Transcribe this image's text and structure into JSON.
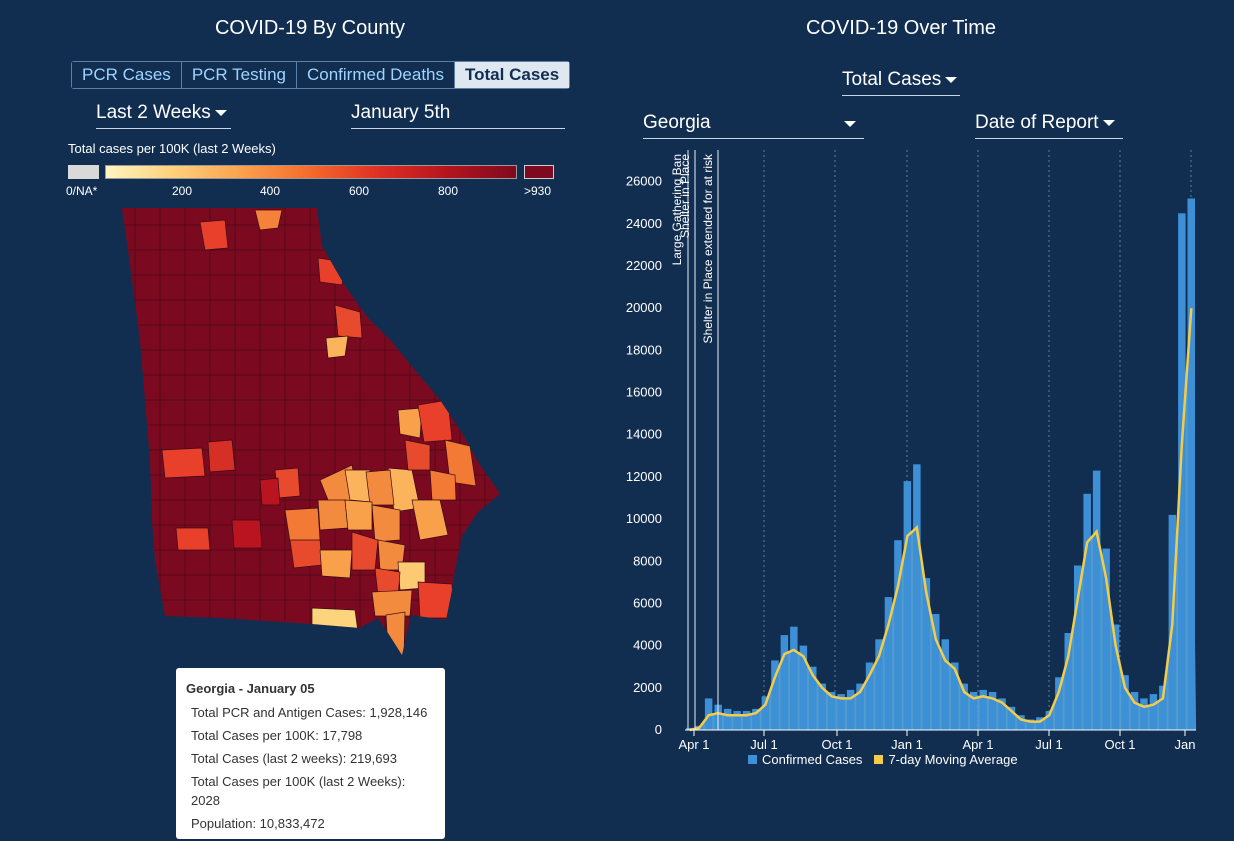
{
  "left": {
    "title": "COVID-19 By County",
    "tabs": [
      {
        "label": "PCR Cases",
        "active": false
      },
      {
        "label": "PCR Testing",
        "active": false
      },
      {
        "label": "Confirmed Deaths",
        "active": false
      },
      {
        "label": "Total Cases",
        "active": true
      }
    ],
    "period_select": "Last 2 Weeks",
    "date_select": "January 5th",
    "legend": {
      "title": "Total cases per 100K (last 2 Weeks)",
      "na_label": "0/NA*",
      "ticks": [
        "200",
        "400",
        "600",
        "800"
      ],
      "max_label": ">930"
    },
    "tooltip": {
      "title": "Georgia - January 05",
      "lines": [
        "Total PCR and Antigen Cases: 1,928,146",
        "Total Cases per 100K: 17,798",
        "Total Cases (last 2 weeks): 219,693",
        "Total Cases per 100K (last 2 Weeks): 2028",
        "Population: 10,833,472"
      ]
    }
  },
  "right": {
    "title": "COVID-19 Over Time",
    "metric_select": "Total Cases",
    "region_select": "Georgia",
    "date_type_select": "Date of Report",
    "legend": {
      "bars": "Confirmed Cases",
      "line": "7-day Moving Average"
    },
    "colors": {
      "bars": "#3d8fd6",
      "area": "#5aa9d8",
      "line": "#f2cc4a"
    }
  },
  "chart_data": {
    "type": "bar",
    "y_ticks": [
      0,
      2000,
      4000,
      6000,
      8000,
      10000,
      12000,
      14000,
      16000,
      18000,
      20000,
      22000,
      24000,
      26000
    ],
    "ylim": [
      0,
      27500
    ],
    "x_ticks": [
      "Apr 1",
      "Jul 1",
      "Oct 1",
      "Jan 1",
      "Apr 1",
      "Jul 1",
      "Oct 1",
      "Jan"
    ],
    "annotations": [
      "Large Gathering Ban",
      "Shelter in Place",
      "Shelter in Place extended for at risk"
    ],
    "weekly_moving_average": [
      0,
      100,
      700,
      800,
      700,
      700,
      700,
      800,
      1200,
      2500,
      3600,
      3800,
      3500,
      2600,
      2000,
      1600,
      1500,
      1500,
      1800,
      2600,
      3500,
      5000,
      6800,
      9200,
      9600,
      6500,
      4300,
      3300,
      2900,
      1800,
      1500,
      1600,
      1500,
      1300,
      900,
      500,
      400,
      400,
      700,
      1800,
      3500,
      6200,
      8900,
      9400,
      7200,
      4000,
      2000,
      1300,
      1100,
      1200,
      1500,
      5000,
      13500,
      20000
    ],
    "weekly_peak_cases": [
      100,
      200,
      1500,
      1200,
      1000,
      900,
      900,
      1000,
      1600,
      3300,
      4500,
      4900,
      4000,
      3000,
      2200,
      1800,
      1700,
      1900,
      2200,
      3200,
      4300,
      6300,
      9000,
      11800,
      12600,
      7200,
      5500,
      4300,
      3200,
      2200,
      1800,
      1900,
      1800,
      1500,
      1100,
      700,
      500,
      600,
      900,
      2500,
      4600,
      7800,
      11200,
      12300,
      8600,
      5000,
      2600,
      1800,
      1500,
      1700,
      2100,
      10200,
      24500,
      25200
    ]
  }
}
